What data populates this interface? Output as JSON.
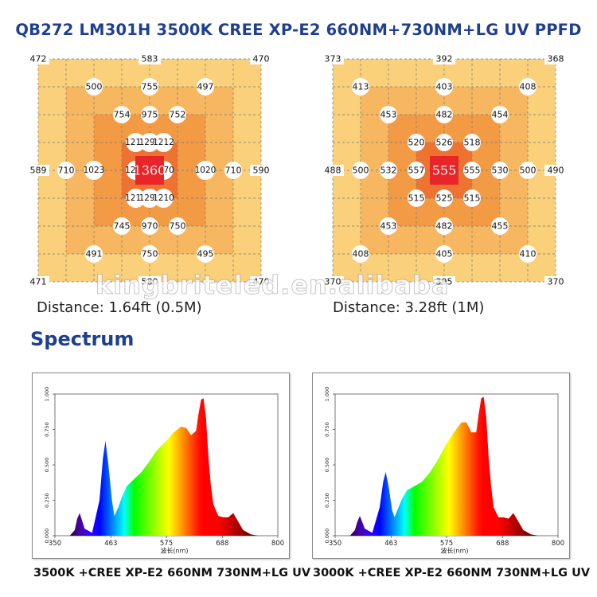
{
  "title": "QB272 LM301H 3500K CREE XP-E2 660NM+730NM+LG UV PPFD",
  "watermark": "kingbriteled.en.alibaba",
  "ppfd_maps": [
    {
      "distance_label": "Distance: 1.64ft (0.5M)",
      "center_value": "1360",
      "corners": {
        "top_left": "472",
        "top_right": "470",
        "bottom_left": "471",
        "bottom_right": "470"
      },
      "edges": {
        "top": "583",
        "bottom": "580",
        "left": "589",
        "right": "590"
      },
      "points": [
        {
          "r": 1,
          "c": 2,
          "v": "500"
        },
        {
          "r": 1,
          "c": 4,
          "v": "755"
        },
        {
          "r": 1,
          "c": 6,
          "v": "497"
        },
        {
          "r": 2,
          "c": 3,
          "v": "754"
        },
        {
          "r": 2,
          "c": 4,
          "v": "975"
        },
        {
          "r": 2,
          "c": 5,
          "v": "752"
        },
        {
          "r": 3,
          "c": 3.5,
          "v": "1210"
        },
        {
          "r": 3,
          "c": 4,
          "v": "1292"
        },
        {
          "r": 3,
          "c": 4.5,
          "v": "1212"
        },
        {
          "r": 4,
          "c": 1,
          "v": "710"
        },
        {
          "r": 4,
          "c": 2,
          "v": "1023"
        },
        {
          "r": 4,
          "c": 3.5,
          "v": "1272"
        },
        {
          "r": 4,
          "c": 4.5,
          "v": "1270"
        },
        {
          "r": 4,
          "c": 6,
          "v": "1020"
        },
        {
          "r": 4,
          "c": 7,
          "v": "710"
        },
        {
          "r": 5,
          "c": 3.5,
          "v": "1210"
        },
        {
          "r": 5,
          "c": 4,
          "v": "1290"
        },
        {
          "r": 5,
          "c": 4.5,
          "v": "1210"
        },
        {
          "r": 6,
          "c": 3,
          "v": "745"
        },
        {
          "r": 6,
          "c": 4,
          "v": "970"
        },
        {
          "r": 6,
          "c": 5,
          "v": "750"
        },
        {
          "r": 7,
          "c": 2,
          "v": "491"
        },
        {
          "r": 7,
          "c": 4,
          "v": "750"
        },
        {
          "r": 7,
          "c": 6,
          "v": "495"
        }
      ]
    },
    {
      "distance_label": "Distance: 3.28ft (1M)",
      "center_value": "555",
      "corners": {
        "top_left": "373",
        "top_right": "368",
        "bottom_left": "370",
        "bottom_right": "370"
      },
      "edges": {
        "top": "392",
        "bottom": "395",
        "left": "488",
        "right": "490"
      },
      "points": [
        {
          "r": 1,
          "c": 1,
          "v": "413"
        },
        {
          "r": 1,
          "c": 4,
          "v": "403"
        },
        {
          "r": 1,
          "c": 7,
          "v": "408"
        },
        {
          "r": 2,
          "c": 2,
          "v": "453"
        },
        {
          "r": 2,
          "c": 4,
          "v": "482"
        },
        {
          "r": 2,
          "c": 6,
          "v": "454"
        },
        {
          "r": 3,
          "c": 3,
          "v": "520"
        },
        {
          "r": 3,
          "c": 4,
          "v": "526"
        },
        {
          "r": 3,
          "c": 5,
          "v": "518"
        },
        {
          "r": 4,
          "c": 1,
          "v": "500"
        },
        {
          "r": 4,
          "c": 2,
          "v": "532"
        },
        {
          "r": 4,
          "c": 3,
          "v": "557"
        },
        {
          "r": 4,
          "c": 5,
          "v": "555"
        },
        {
          "r": 4,
          "c": 6,
          "v": "530"
        },
        {
          "r": 4,
          "c": 7,
          "v": "500"
        },
        {
          "r": 5,
          "c": 3,
          "v": "515"
        },
        {
          "r": 5,
          "c": 4,
          "v": "525"
        },
        {
          "r": 5,
          "c": 5,
          "v": "515"
        },
        {
          "r": 6,
          "c": 2,
          "v": "453"
        },
        {
          "r": 6,
          "c": 4,
          "v": "482"
        },
        {
          "r": 6,
          "c": 6,
          "v": "455"
        },
        {
          "r": 7,
          "c": 1,
          "v": "408"
        },
        {
          "r": 7,
          "c": 4,
          "v": "405"
        },
        {
          "r": 7,
          "c": 7,
          "v": "410"
        }
      ]
    }
  ],
  "spectrum_title": "Spectrum",
  "chart_data": [
    {
      "type": "area",
      "caption": "3500K +CREE XP-E2 660NM 730NM+LG UV",
      "xlabel": "波长(nm)",
      "x_ticks": [
        "350",
        "463",
        "575",
        "688",
        "800"
      ],
      "y_ticks": [
        "0.000",
        "0.250",
        "0.500",
        "0.750",
        "1.000"
      ],
      "xlim": [
        350,
        800
      ],
      "ylim": [
        0,
        1
      ],
      "x": [
        350,
        380,
        390,
        395,
        400,
        410,
        425,
        440,
        447,
        452,
        458,
        465,
        470,
        478,
        485,
        495,
        510,
        525,
        540,
        555,
        575,
        590,
        605,
        615,
        625,
        635,
        640,
        645,
        650,
        655,
        660,
        665,
        670,
        680,
        690,
        700,
        710,
        720,
        730,
        740,
        745,
        760,
        780,
        800
      ],
      "values": [
        0,
        0,
        0.04,
        0.12,
        0.16,
        0.05,
        0.02,
        0.25,
        0.55,
        0.67,
        0.5,
        0.25,
        0.14,
        0.2,
        0.27,
        0.35,
        0.4,
        0.45,
        0.52,
        0.6,
        0.67,
        0.73,
        0.77,
        0.76,
        0.71,
        0.74,
        0.86,
        0.96,
        0.97,
        0.83,
        0.55,
        0.35,
        0.22,
        0.14,
        0.13,
        0.13,
        0.16,
        0.1,
        0.04,
        0.02,
        0.01,
        0,
        0,
        0
      ]
    },
    {
      "type": "area",
      "caption": "3000K +CREE XP-E2 660NM 730NM+LG UV",
      "xlabel": "波长(nm)",
      "x_ticks": [
        "350",
        "463",
        "575",
        "688",
        "800"
      ],
      "y_ticks": [
        "0.000",
        "0.250",
        "0.500",
        "0.750",
        "1.000"
      ],
      "xlim": [
        350,
        800
      ],
      "ylim": [
        0,
        1
      ],
      "x": [
        350,
        380,
        390,
        395,
        400,
        410,
        425,
        440,
        447,
        452,
        458,
        465,
        470,
        478,
        485,
        495,
        510,
        525,
        540,
        555,
        575,
        590,
        605,
        615,
        625,
        635,
        640,
        645,
        650,
        655,
        660,
        665,
        670,
        680,
        690,
        700,
        710,
        720,
        730,
        740,
        745,
        760,
        780,
        800
      ],
      "values": [
        0,
        0,
        0.04,
        0.1,
        0.14,
        0.05,
        0.02,
        0.2,
        0.38,
        0.45,
        0.35,
        0.18,
        0.13,
        0.2,
        0.26,
        0.32,
        0.35,
        0.38,
        0.44,
        0.52,
        0.65,
        0.73,
        0.8,
        0.8,
        0.73,
        0.73,
        0.86,
        0.97,
        0.98,
        0.84,
        0.55,
        0.35,
        0.2,
        0.13,
        0.13,
        0.12,
        0.16,
        0.1,
        0.04,
        0.02,
        0.01,
        0,
        0,
        0
      ]
    }
  ]
}
